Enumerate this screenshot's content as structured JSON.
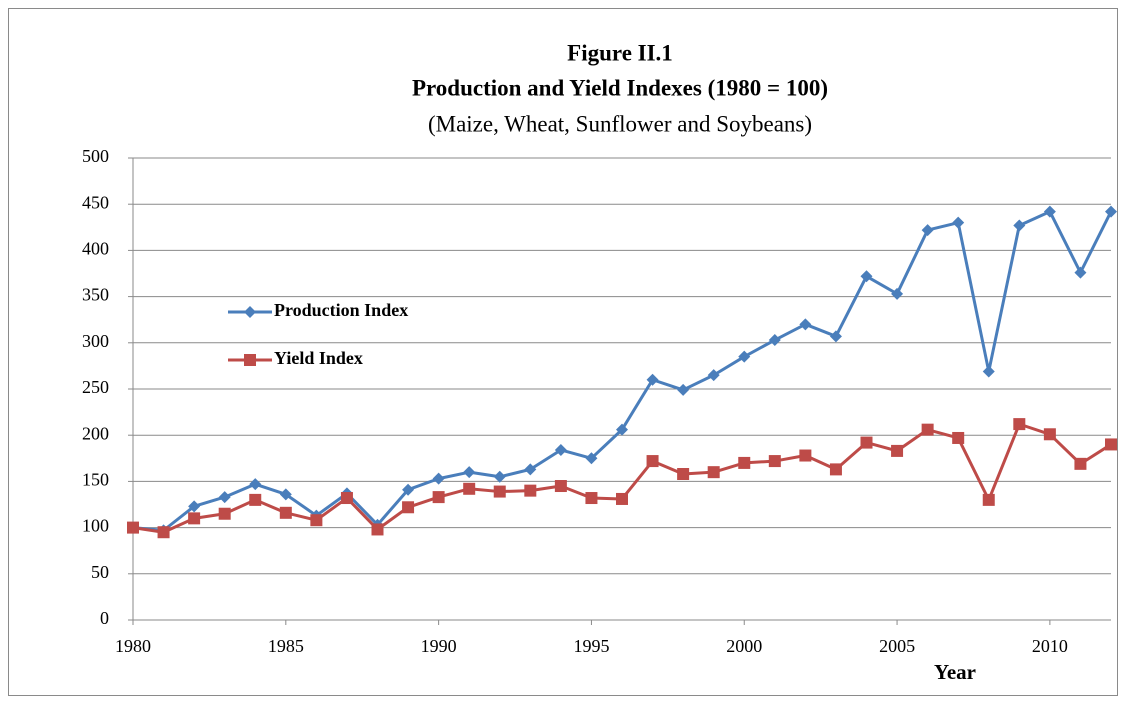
{
  "chart_data": {
    "type": "line",
    "title": "Figure II.1",
    "subtitle": "Production and Yield Indexes (1980 = 100)",
    "note": "(Maize, Wheat, Sunflower and Soybeans)",
    "x_label": "Year",
    "x": [
      1980,
      1981,
      1982,
      1983,
      1984,
      1985,
      1986,
      1987,
      1988,
      1989,
      1990,
      1991,
      1992,
      1993,
      1994,
      1995,
      1996,
      1997,
      1998,
      1999,
      2000,
      2001,
      2002,
      2003,
      2004,
      2005,
      2006,
      2007,
      2008,
      2009,
      2010,
      2011,
      2012
    ],
    "series": [
      {
        "name": "Production Index",
        "color": "#4a7ebb",
        "marker": "diamond",
        "values": [
          100,
          97,
          123,
          133,
          147,
          136,
          113,
          137,
          103,
          141,
          153,
          160,
          155,
          163,
          184,
          175,
          206,
          260,
          249,
          265,
          285,
          303,
          320,
          307,
          372,
          353,
          422,
          430,
          269,
          427,
          442,
          376,
          442
        ]
      },
      {
        "name": "Yield Index",
        "color": "#be4b48",
        "marker": "square",
        "values": [
          100,
          95,
          110,
          115,
          130,
          116,
          108,
          132,
          98,
          122,
          133,
          142,
          139,
          140,
          145,
          132,
          131,
          172,
          158,
          160,
          170,
          172,
          178,
          163,
          192,
          183,
          206,
          197,
          130,
          212,
          201,
          169,
          190
        ]
      }
    ],
    "xlim": [
      1980,
      2012
    ],
    "xticks": [
      1980,
      1985,
      1990,
      1995,
      2000,
      2005,
      2010
    ],
    "ylim": [
      0,
      500
    ],
    "yticks": [
      0,
      50,
      100,
      150,
      200,
      250,
      300,
      350,
      400,
      450,
      500
    ],
    "grid": true,
    "legend": "left"
  }
}
